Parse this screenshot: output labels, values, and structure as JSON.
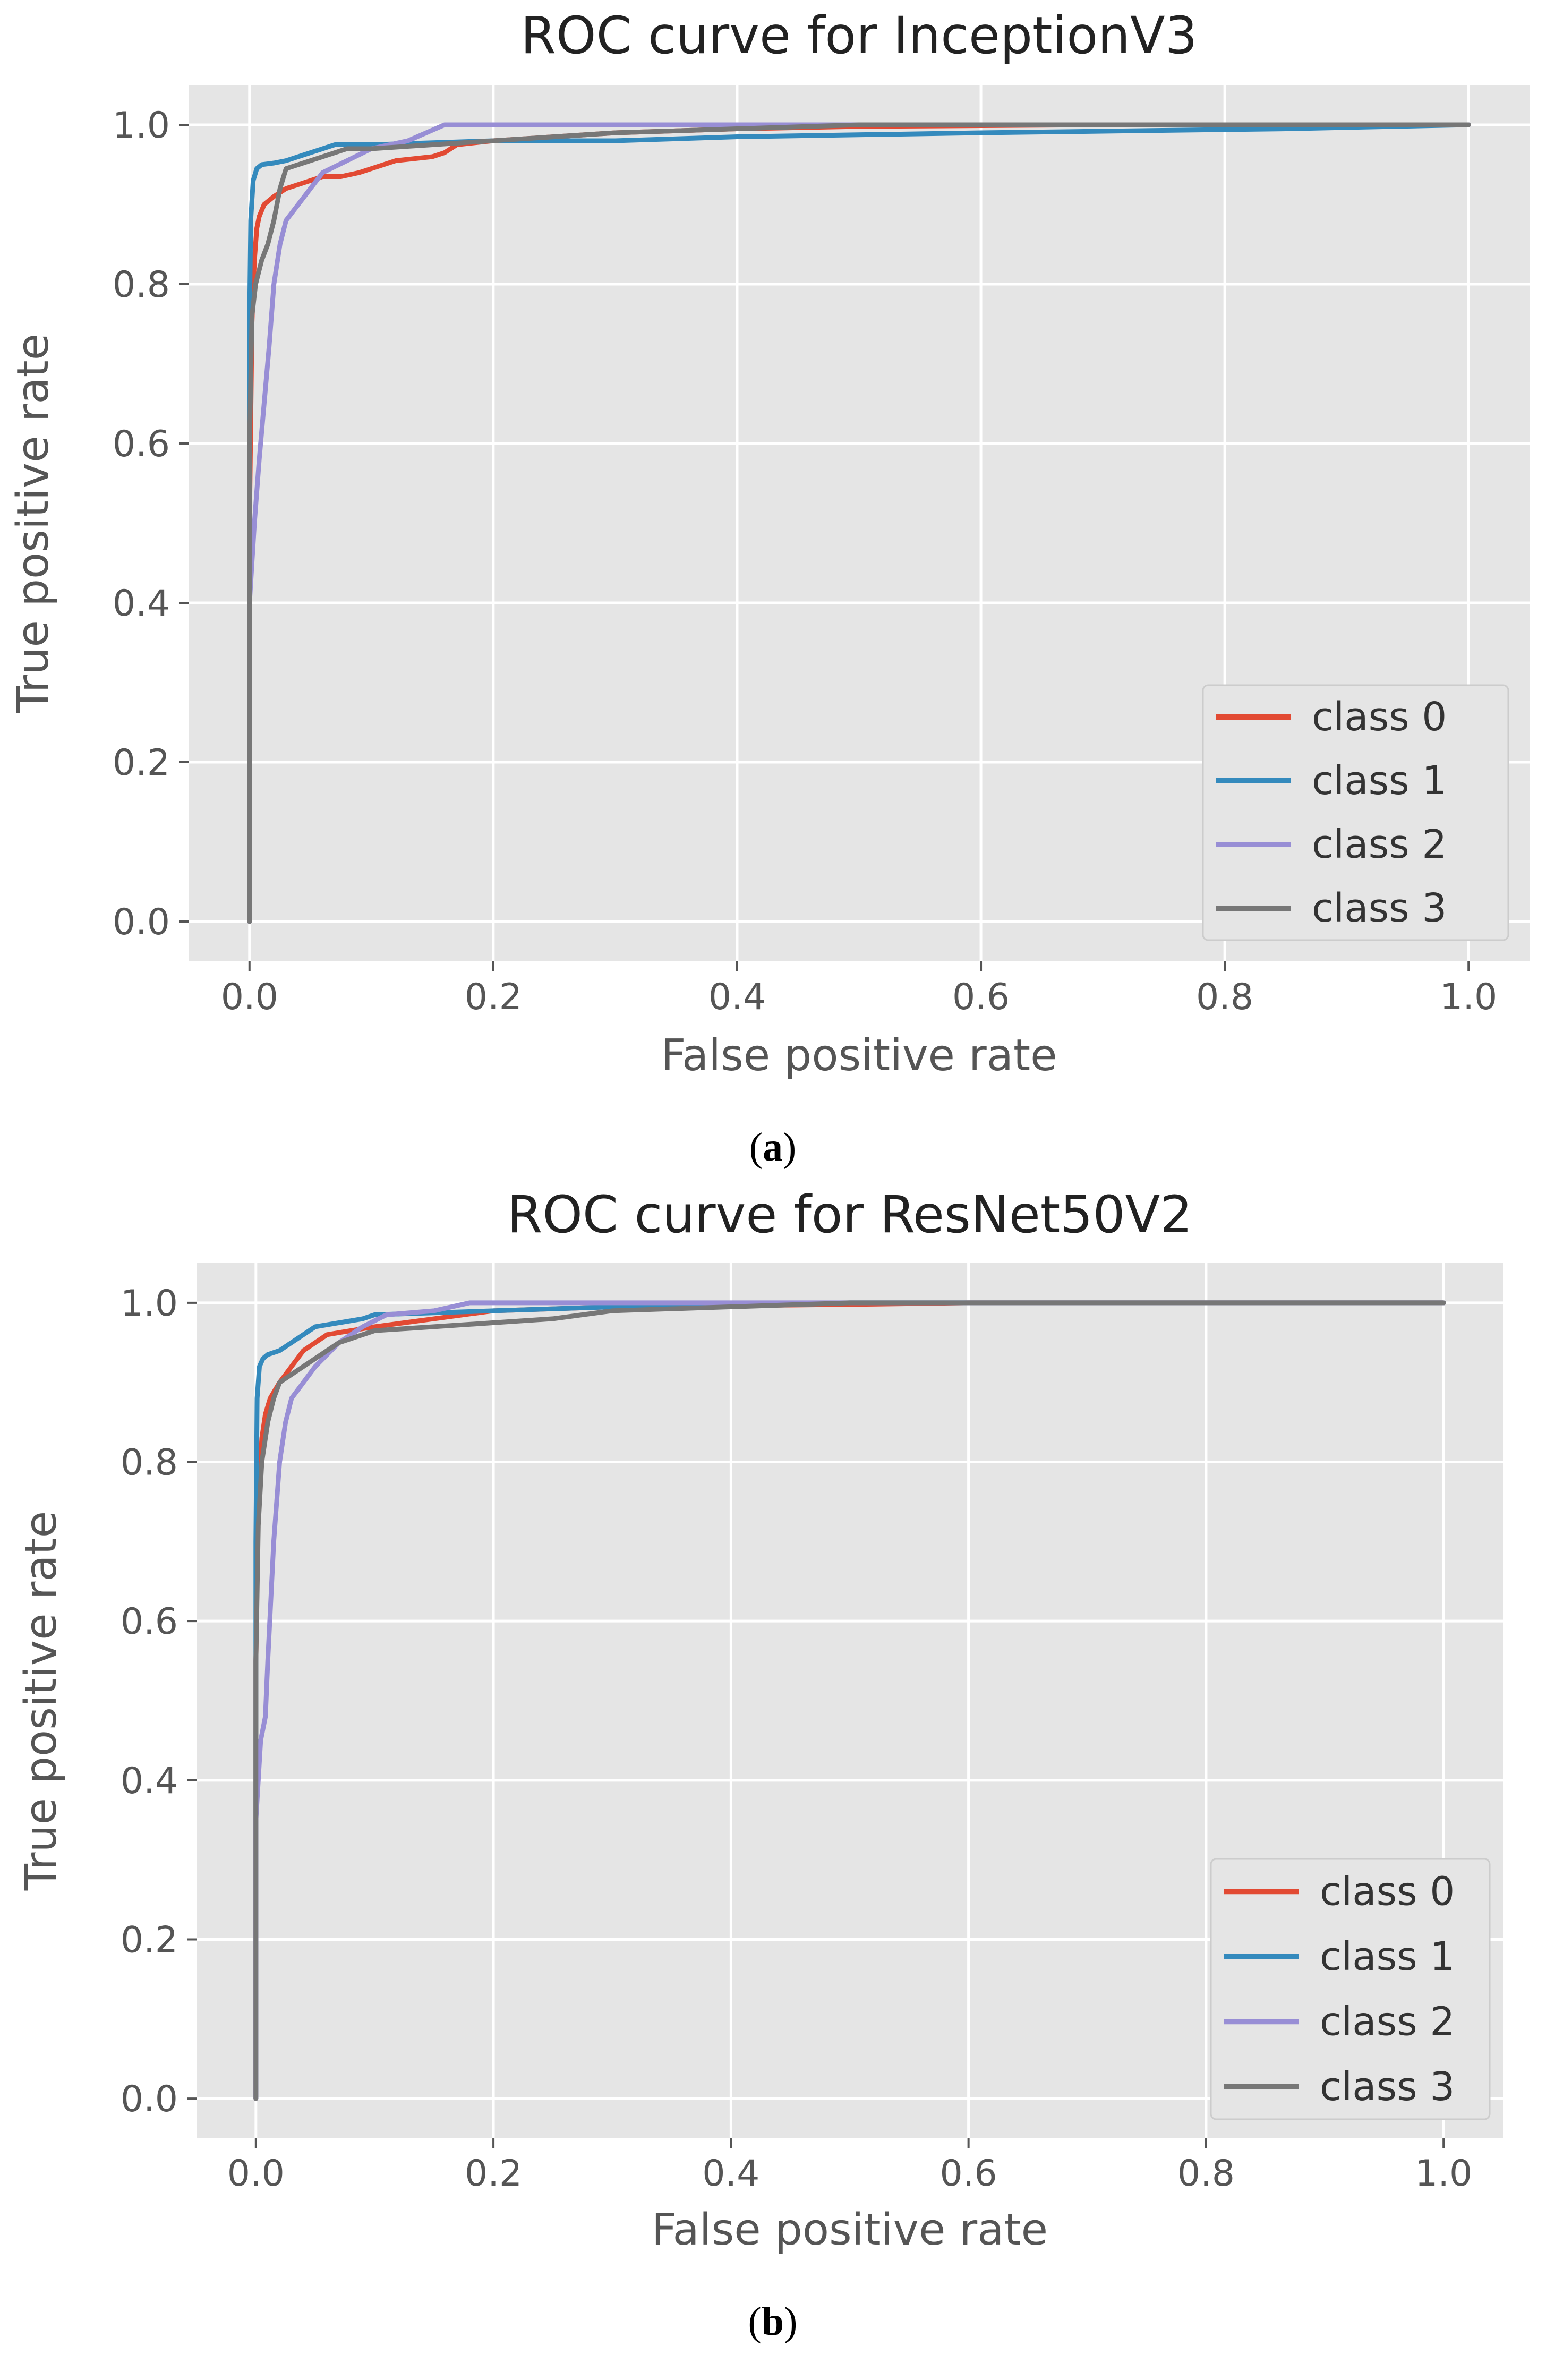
{
  "chart_data": [
    {
      "type": "line",
      "title": "ROC curve for InceptionV3",
      "xlabel": "False positive rate",
      "ylabel": "True positive  rate",
      "xlim": [
        -0.05,
        1.05
      ],
      "ylim": [
        -0.05,
        1.05
      ],
      "xticks": [
        "0.0",
        "0.2",
        "0.4",
        "0.6",
        "0.8",
        "1.0"
      ],
      "yticks": [
        "0.0",
        "0.2",
        "0.4",
        "0.6",
        "0.8",
        "1.0"
      ],
      "grid": true,
      "legend_position": "lower-right",
      "panel_label": "a",
      "series": [
        {
          "name": "class 0",
          "color": "#e24a33",
          "x": [
            0,
            0,
            0.002,
            0.004,
            0.006,
            0.008,
            0.012,
            0.02,
            0.03,
            0.04,
            0.05,
            0.06,
            0.075,
            0.09,
            0.1,
            0.11,
            0.12,
            0.15,
            0.16,
            0.17,
            0.2,
            0.3,
            0.4,
            0.5,
            0.7,
            1.0
          ],
          "y": [
            0,
            0.5,
            0.75,
            0.83,
            0.87,
            0.885,
            0.9,
            0.91,
            0.92,
            0.925,
            0.93,
            0.935,
            0.935,
            0.94,
            0.945,
            0.95,
            0.955,
            0.96,
            0.965,
            0.975,
            0.98,
            0.99,
            0.995,
            0.998,
            1.0,
            1.0
          ]
        },
        {
          "name": "class 1",
          "color": "#348abd",
          "x": [
            0,
            0,
            0.001,
            0.003,
            0.006,
            0.01,
            0.02,
            0.03,
            0.05,
            0.07,
            0.1,
            0.2,
            0.3,
            0.4,
            0.6,
            0.85,
            1.0
          ],
          "y": [
            0,
            0.75,
            0.88,
            0.93,
            0.945,
            0.95,
            0.952,
            0.955,
            0.965,
            0.975,
            0.975,
            0.98,
            0.98,
            0.985,
            0.99,
            0.995,
            1.0
          ]
        },
        {
          "name": "class 2",
          "color": "#988ed5",
          "x": [
            0,
            0,
            0.004,
            0.008,
            0.012,
            0.016,
            0.02,
            0.025,
            0.03,
            0.04,
            0.05,
            0.06,
            0.08,
            0.1,
            0.13,
            0.16,
            0.2,
            1.0
          ],
          "y": [
            0,
            0.4,
            0.5,
            0.58,
            0.65,
            0.72,
            0.8,
            0.85,
            0.88,
            0.9,
            0.92,
            0.94,
            0.955,
            0.97,
            0.98,
            1.0,
            1.0,
            1.0
          ]
        },
        {
          "name": "class 3",
          "color": "#777777",
          "x": [
            0,
            0,
            0.002,
            0.005,
            0.01,
            0.015,
            0.02,
            0.025,
            0.03,
            0.04,
            0.06,
            0.08,
            0.1,
            0.15,
            0.2,
            0.3,
            0.5,
            1.0
          ],
          "y": [
            0,
            0.6,
            0.76,
            0.8,
            0.83,
            0.85,
            0.88,
            0.92,
            0.945,
            0.95,
            0.96,
            0.97,
            0.97,
            0.975,
            0.98,
            0.99,
            1.0,
            1.0
          ]
        }
      ]
    },
    {
      "type": "line",
      "title": "ROC curve for ResNet50V2",
      "xlabel": "False positive rate",
      "ylabel": "True positive  rate",
      "xlim": [
        -0.05,
        1.05
      ],
      "ylim": [
        -0.05,
        1.05
      ],
      "xticks": [
        "0.0",
        "0.2",
        "0.4",
        "0.6",
        "0.8",
        "1.0"
      ],
      "yticks": [
        "0.0",
        "0.2",
        "0.4",
        "0.6",
        "0.8",
        "1.0"
      ],
      "grid": true,
      "legend_position": "lower-right",
      "panel_label": "b",
      "series": [
        {
          "name": "class 0",
          "color": "#e24a33",
          "x": [
            0,
            0,
            0.002,
            0.005,
            0.008,
            0.012,
            0.02,
            0.03,
            0.04,
            0.05,
            0.06,
            0.08,
            0.1,
            0.15,
            0.2,
            0.3,
            0.5,
            0.6,
            1.0
          ],
          "y": [
            0,
            0.55,
            0.75,
            0.83,
            0.86,
            0.88,
            0.9,
            0.92,
            0.94,
            0.95,
            0.96,
            0.965,
            0.97,
            0.98,
            0.99,
            0.995,
            0.998,
            1.0,
            1.0
          ]
        },
        {
          "name": "class 1",
          "color": "#348abd",
          "x": [
            0,
            0,
            0.001,
            0.003,
            0.006,
            0.01,
            0.02,
            0.03,
            0.05,
            0.07,
            0.09,
            0.1,
            0.2,
            0.3,
            0.5,
            1.0
          ],
          "y": [
            0,
            0.7,
            0.88,
            0.92,
            0.93,
            0.935,
            0.94,
            0.95,
            0.97,
            0.975,
            0.98,
            0.985,
            0.99,
            0.995,
            1.0,
            1.0
          ]
        },
        {
          "name": "class 2",
          "color": "#988ed5",
          "x": [
            0,
            0,
            0.004,
            0.008,
            0.01,
            0.015,
            0.02,
            0.025,
            0.03,
            0.04,
            0.05,
            0.07,
            0.09,
            0.11,
            0.15,
            0.18,
            0.2,
            1.0
          ],
          "y": [
            0,
            0.35,
            0.45,
            0.48,
            0.55,
            0.7,
            0.8,
            0.85,
            0.88,
            0.9,
            0.92,
            0.95,
            0.97,
            0.985,
            0.99,
            1.0,
            1.0,
            1.0
          ]
        },
        {
          "name": "class 3",
          "color": "#777777",
          "x": [
            0,
            0,
            0.002,
            0.005,
            0.01,
            0.015,
            0.02,
            0.03,
            0.05,
            0.07,
            0.09,
            0.1,
            0.15,
            0.2,
            0.25,
            0.3,
            0.5,
            1.0
          ],
          "y": [
            0,
            0.55,
            0.72,
            0.8,
            0.85,
            0.88,
            0.9,
            0.91,
            0.93,
            0.95,
            0.96,
            0.965,
            0.97,
            0.975,
            0.98,
            0.99,
            1.0,
            1.0
          ]
        }
      ]
    }
  ]
}
